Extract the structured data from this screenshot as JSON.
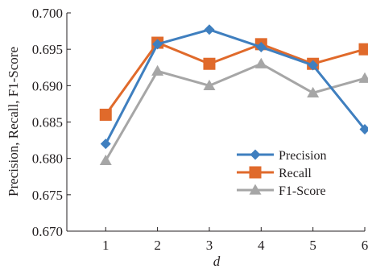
{
  "chart_data": {
    "type": "line",
    "x": [
      1,
      2,
      3,
      4,
      5,
      6
    ],
    "xlabel": "d",
    "ylabel": "Precision, Recall, F1-Score",
    "xlim": [
      0.25,
      6
    ],
    "ylim": [
      0.67,
      0.7
    ],
    "x_ticks": [
      "1",
      "2",
      "3",
      "4",
      "5",
      "6"
    ],
    "y_ticks": [
      "0.670",
      "0.675",
      "0.680",
      "0.685",
      "0.690",
      "0.695",
      "0.700"
    ],
    "grid": false,
    "legend_position": "bottom-right",
    "series": [
      {
        "name": "Precision",
        "color": "#3f7fbf",
        "marker": "diamond",
        "values": [
          0.682,
          0.6957,
          0.6977,
          0.6953,
          0.6928,
          0.684
        ]
      },
      {
        "name": "Recall",
        "color": "#e06a2b",
        "marker": "square",
        "values": [
          0.686,
          0.6959,
          0.693,
          0.6957,
          0.693,
          0.695
        ]
      },
      {
        "name": "F1-Score",
        "color": "#a6a6a6",
        "marker": "triangle",
        "values": [
          0.6797,
          0.692,
          0.69,
          0.693,
          0.689,
          0.691
        ]
      }
    ]
  }
}
